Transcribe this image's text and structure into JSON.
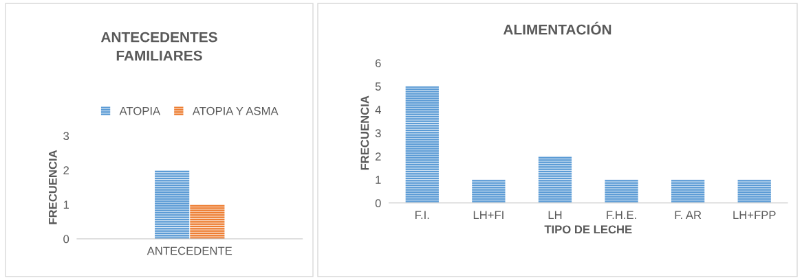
{
  "chart_data": [
    {
      "type": "bar",
      "title": "ANTECEDENTES FAMILIARES",
      "ylabel": "FRECUENCIA",
      "categories": [
        "ANTECEDENTE"
      ],
      "series": [
        {
          "name": "ATOPIA",
          "color": "#5b9bd5",
          "values": [
            2
          ]
        },
        {
          "name": "ATOPIA Y ASMA",
          "color": "#ed7d31",
          "values": [
            1
          ]
        }
      ],
      "ylim": [
        0,
        3
      ],
      "yticks": [
        0,
        1,
        2,
        3
      ],
      "grid": false,
      "legend": "top"
    },
    {
      "type": "bar",
      "title": "ALIMENTACIÓN",
      "ylabel": "FRECUENCIA",
      "xlabel": "TIPO DE LECHE",
      "categories": [
        "F.I.",
        "LH+FI",
        "LH",
        "F.H.E.",
        "F. AR",
        "LH+FPP"
      ],
      "series": [
        {
          "color": "#5b9bd5",
          "values": [
            5,
            1,
            2,
            1,
            1,
            1
          ]
        }
      ],
      "ylim": [
        0,
        6
      ],
      "yticks": [
        0,
        1,
        2,
        3,
        4,
        5,
        6
      ],
      "grid": false,
      "legend": false
    }
  ]
}
